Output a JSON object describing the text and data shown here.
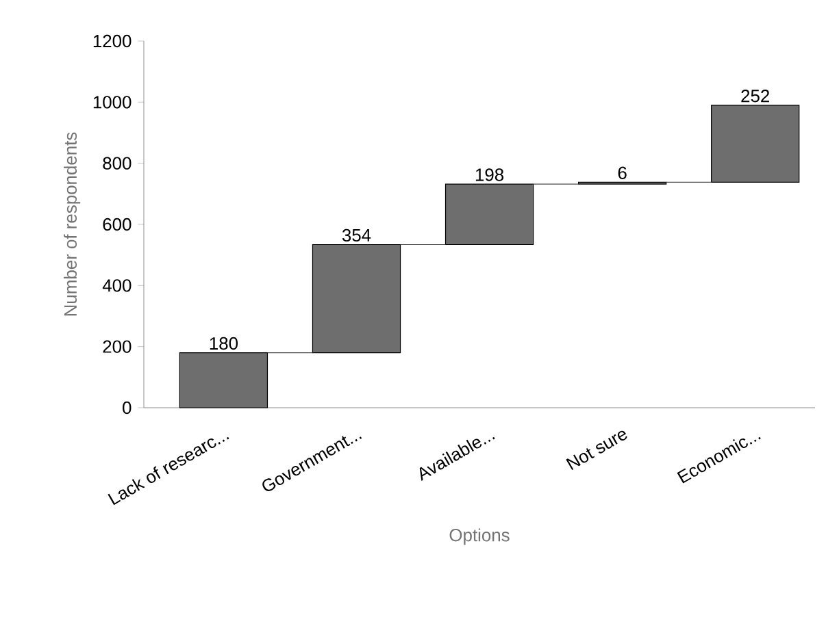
{
  "chart_data": {
    "type": "bar",
    "xlabel": "Options",
    "ylabel": "Number of respondents",
    "categories": [
      "Lack of researc...",
      "Government...",
      "Available...",
      "Not sure",
      "Economic..."
    ],
    "values": [
      180,
      354,
      198,
      6,
      252
    ],
    "base": [
      0,
      180,
      534,
      732,
      738
    ],
    "color": "#6e6e6e",
    "ylim": [
      0,
      1200
    ],
    "yticks": [
      0,
      200,
      400,
      600,
      800,
      1000,
      1200
    ],
    "data_labels": true,
    "grid": false
  }
}
